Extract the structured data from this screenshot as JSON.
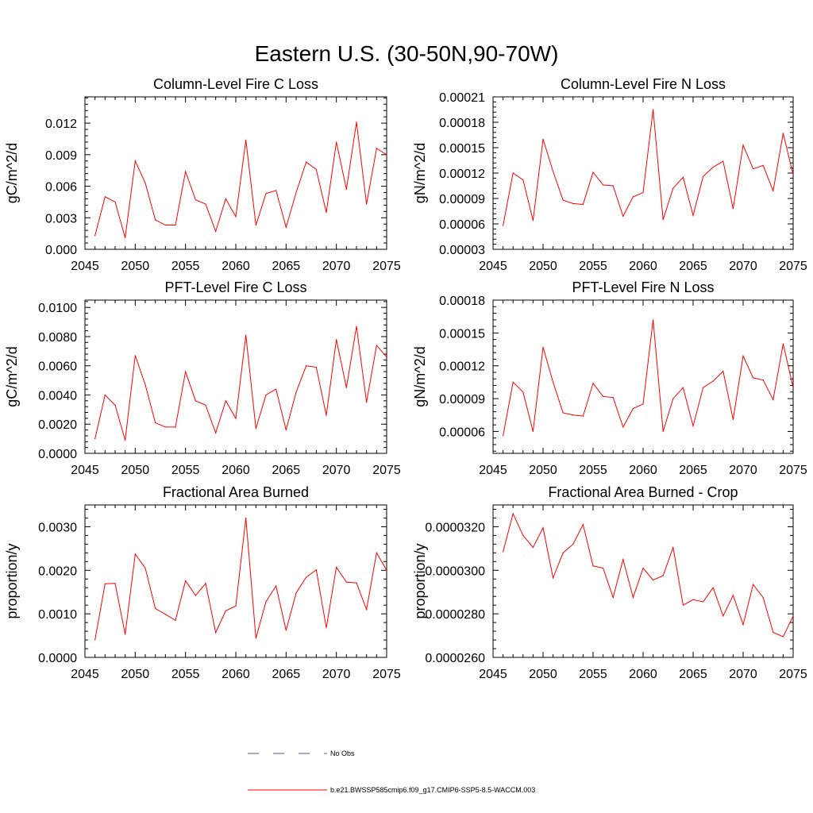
{
  "figure": {
    "title": "Eastern U.S. (30-50N,90-70W)"
  },
  "legend": {
    "entries": [
      {
        "label": "No Obs",
        "color": "#5555aa",
        "dashed": true
      },
      {
        "label": "b.e21.BWSSP585cmip6.f09_g17.CMIP6-SSP5-8.5-WACCM.003",
        "color": "#ff0000",
        "dashed": false
      }
    ]
  },
  "chart_data": [
    {
      "type": "line",
      "title": "Column-Level Fire C Loss",
      "ylabel": "gC/m^2/d",
      "xlabel": "",
      "xlim": [
        2045,
        2075
      ],
      "ylim": [
        0,
        0.0145
      ],
      "xticks": [
        2045,
        2050,
        2055,
        2060,
        2065,
        2070,
        2075
      ],
      "xtick_labels": [
        "2045",
        "2050",
        "2055",
        "2060",
        "2065",
        "2070",
        "2075"
      ],
      "yticks": [
        0,
        0.003,
        0.006,
        0.009,
        0.012
      ],
      "ytick_labels": [
        "0.000",
        "0.003",
        "0.006",
        "0.009",
        "0.012"
      ],
      "x": [
        2046,
        2047,
        2048,
        2049,
        2050,
        2051,
        2052,
        2053,
        2054,
        2055,
        2056,
        2057,
        2058,
        2059,
        2060,
        2061,
        2062,
        2063,
        2064,
        2065,
        2066,
        2067,
        2068,
        2069,
        2070,
        2071,
        2072,
        2073,
        2074,
        2075
      ],
      "series": [
        {
          "name": "b.e21.BWSSP585cmip6.f09_g17.CMIP6-SSP5-8.5-WACCM.003",
          "color": "#ff0000",
          "values": [
            0.0013,
            0.005,
            0.0045,
            0.0011,
            0.0084,
            0.0063,
            0.0028,
            0.0023,
            0.0023,
            0.0074,
            0.0047,
            0.0043,
            0.0017,
            0.0048,
            0.0031,
            0.0104,
            0.0023,
            0.0053,
            0.0056,
            0.0021,
            0.0054,
            0.0083,
            0.0076,
            0.0035,
            0.0102,
            0.0057,
            0.0121,
            0.0043,
            0.0096,
            0.009
          ]
        }
      ]
    },
    {
      "type": "line",
      "title": "Column-Level Fire N Loss",
      "ylabel": "gN/m^2/d",
      "xlabel": "",
      "xlim": [
        2045,
        2075
      ],
      "ylim": [
        3e-05,
        0.00021
      ],
      "xticks": [
        2045,
        2050,
        2055,
        2060,
        2065,
        2070,
        2075
      ],
      "xtick_labels": [
        "2045",
        "2050",
        "2055",
        "2060",
        "2065",
        "2070",
        "2075"
      ],
      "yticks": [
        3e-05,
        6e-05,
        9e-05,
        0.00012,
        0.00015,
        0.00018,
        0.00021
      ],
      "ytick_labels": [
        "0.00003",
        "0.00006",
        "0.00009",
        "0.00012",
        "0.00015",
        "0.00018",
        "0.00021"
      ],
      "x": [
        2046,
        2047,
        2048,
        2049,
        2050,
        2051,
        2052,
        2053,
        2054,
        2055,
        2056,
        2057,
        2058,
        2059,
        2060,
        2061,
        2062,
        2063,
        2064,
        2065,
        2066,
        2067,
        2068,
        2069,
        2070,
        2071,
        2072,
        2073,
        2074,
        2075
      ],
      "series": [
        {
          "name": "b.e21.BWSSP585cmip6.f09_g17.CMIP6-SSP5-8.5-WACCM.003",
          "color": "#ff0000",
          "values": [
            5.8e-05,
            0.00012,
            0.000112,
            6.4e-05,
            0.00016,
            0.000122,
            8.8e-05,
            8.4e-05,
            8.3e-05,
            0.000121,
            0.000106,
            0.000105,
            6.9e-05,
            9.2e-05,
            9.7e-05,
            0.000195,
            6.5e-05,
            0.000102,
            0.000115,
            7e-05,
            0.000116,
            0.000127,
            0.000134,
            7.8e-05,
            0.000153,
            0.000125,
            0.000129,
            9.9e-05,
            0.000167,
            0.000118
          ]
        }
      ]
    },
    {
      "type": "line",
      "title": "PFT-Level Fire C Loss",
      "ylabel": "gC/m^2/d",
      "xlabel": "",
      "xlim": [
        2045,
        2075
      ],
      "ylim": [
        0,
        0.0105
      ],
      "xticks": [
        2045,
        2050,
        2055,
        2060,
        2065,
        2070,
        2075
      ],
      "xtick_labels": [
        "2045",
        "2050",
        "2055",
        "2060",
        "2065",
        "2070",
        "2075"
      ],
      "yticks": [
        0,
        0.002,
        0.004,
        0.006,
        0.008,
        0.01
      ],
      "ytick_labels": [
        "0.0000",
        "0.0020",
        "0.0040",
        "0.0060",
        "0.0080",
        "0.0100"
      ],
      "x": [
        2046,
        2047,
        2048,
        2049,
        2050,
        2051,
        2052,
        2053,
        2054,
        2055,
        2056,
        2057,
        2058,
        2059,
        2060,
        2061,
        2062,
        2063,
        2064,
        2065,
        2066,
        2067,
        2068,
        2069,
        2070,
        2071,
        2072,
        2073,
        2074,
        2075
      ],
      "series": [
        {
          "name": "b.e21.BWSSP585cmip6.f09_g17.CMIP6-SSP5-8.5-WACCM.003",
          "color": "#ff0000",
          "values": [
            0.001,
            0.004,
            0.0033,
            0.0009,
            0.0067,
            0.0047,
            0.0021,
            0.0018,
            0.0018,
            0.0056,
            0.0036,
            0.0033,
            0.0014,
            0.0036,
            0.0024,
            0.0081,
            0.0017,
            0.004,
            0.0044,
            0.0016,
            0.0042,
            0.006,
            0.0059,
            0.0026,
            0.0078,
            0.0045,
            0.0087,
            0.0035,
            0.0074,
            0.0066
          ]
        }
      ]
    },
    {
      "type": "line",
      "title": "PFT-Level Fire N Loss",
      "ylabel": "gN/m^2/d",
      "xlabel": "",
      "xlim": [
        2045,
        2075
      ],
      "ylim": [
        4e-05,
        0.00018
      ],
      "xticks": [
        2045,
        2050,
        2055,
        2060,
        2065,
        2070,
        2075
      ],
      "xtick_labels": [
        "2045",
        "2050",
        "2055",
        "2060",
        "2065",
        "2070",
        "2075"
      ],
      "yticks": [
        6e-05,
        9e-05,
        0.00012,
        0.00015,
        0.00018
      ],
      "ytick_labels": [
        "0.00006",
        "0.00009",
        "0.00012",
        "0.00015",
        "0.00018"
      ],
      "x": [
        2046,
        2047,
        2048,
        2049,
        2050,
        2051,
        2052,
        2053,
        2054,
        2055,
        2056,
        2057,
        2058,
        2059,
        2060,
        2061,
        2062,
        2063,
        2064,
        2065,
        2066,
        2067,
        2068,
        2069,
        2070,
        2071,
        2072,
        2073,
        2074,
        2075
      ],
      "series": [
        {
          "name": "b.e21.BWSSP585cmip6.f09_g17.CMIP6-SSP5-8.5-WACCM.003",
          "color": "#ff0000",
          "values": [
            5.6e-05,
            0.000105,
            9.6e-05,
            6e-05,
            0.000137,
            0.000105,
            7.7e-05,
            7.5e-05,
            7.4e-05,
            0.000104,
            9.2e-05,
            9.1e-05,
            6.4e-05,
            8.1e-05,
            8.5e-05,
            0.000162,
            6e-05,
            9e-05,
            0.0001,
            6.5e-05,
            0.0001,
            0.000106,
            0.000115,
            7.1e-05,
            0.000129,
            0.000109,
            0.000107,
            8.9e-05,
            0.00014,
            0.0001
          ]
        }
      ]
    },
    {
      "type": "line",
      "title": "Fractional Area Burned",
      "ylabel": "proportion/y",
      "xlabel": "",
      "xlim": [
        2045,
        2075
      ],
      "ylim": [
        0,
        0.0035
      ],
      "xticks": [
        2045,
        2050,
        2055,
        2060,
        2065,
        2070,
        2075
      ],
      "xtick_labels": [
        "2045",
        "2050",
        "2055",
        "2060",
        "2065",
        "2070",
        "2075"
      ],
      "yticks": [
        0,
        0.001,
        0.002,
        0.003
      ],
      "ytick_labels": [
        "0.0000",
        "0.0010",
        "0.0020",
        "0.0030"
      ],
      "x": [
        2046,
        2047,
        2048,
        2049,
        2050,
        2051,
        2052,
        2053,
        2054,
        2055,
        2056,
        2057,
        2058,
        2059,
        2060,
        2061,
        2062,
        2063,
        2064,
        2065,
        2066,
        2067,
        2068,
        2069,
        2070,
        2071,
        2072,
        2073,
        2074,
        2075
      ],
      "series": [
        {
          "name": "b.e21.BWSSP585cmip6.f09_g17.CMIP6-SSP5-8.5-WACCM.003",
          "color": "#ff0000",
          "values": [
            0.0004,
            0.00169,
            0.0017,
            0.00053,
            0.00237,
            0.00205,
            0.00112,
            0.00099,
            0.00085,
            0.00176,
            0.00142,
            0.0017,
            0.00057,
            0.00107,
            0.00118,
            0.0032,
            0.00044,
            0.00128,
            0.00164,
            0.00062,
            0.00148,
            0.00184,
            0.00201,
            0.00068,
            0.00207,
            0.00173,
            0.00171,
            0.0011,
            0.0024,
            0.002
          ]
        }
      ]
    },
    {
      "type": "line",
      "title": "Fractional Area Burned - Crop",
      "ylabel": "proportion/y",
      "xlabel": "",
      "xlim": [
        2045,
        2075
      ],
      "ylim": [
        2.6e-05,
        3.3e-05
      ],
      "xticks": [
        2045,
        2050,
        2055,
        2060,
        2065,
        2070,
        2075
      ],
      "xtick_labels": [
        "2045",
        "2050",
        "2055",
        "2060",
        "2065",
        "2070",
        "2075"
      ],
      "yticks": [
        2.6e-05,
        2.8e-05,
        3e-05,
        3.2e-05
      ],
      "ytick_labels": [
        "0.0000260",
        "0.0000280",
        "0.0000300",
        "0.0000320"
      ],
      "x": [
        2046,
        2047,
        2048,
        2049,
        2050,
        2051,
        2052,
        2053,
        2054,
        2055,
        2056,
        2057,
        2058,
        2059,
        2060,
        2061,
        2062,
        2063,
        2064,
        2065,
        2066,
        2067,
        2068,
        2069,
        2070,
        2071,
        2072,
        2073,
        2074,
        2075
      ],
      "series": [
        {
          "name": "b.e21.BWSSP585cmip6.f09_g17.CMIP6-SSP5-8.5-WACCM.003",
          "color": "#ff0000",
          "values": [
            3.085e-05,
            3.26e-05,
            3.16e-05,
            3.105e-05,
            3.195e-05,
            2.965e-05,
            3.08e-05,
            3.12e-05,
            3.21e-05,
            3.02e-05,
            3.01e-05,
            2.875e-05,
            3.05e-05,
            2.875e-05,
            3.01e-05,
            2.955e-05,
            2.975e-05,
            3.105e-05,
            2.84e-05,
            2.865e-05,
            2.855e-05,
            2.92e-05,
            2.79e-05,
            2.885e-05,
            2.75e-05,
            2.935e-05,
            2.875e-05,
            2.715e-05,
            2.695e-05,
            2.79e-05
          ]
        }
      ]
    }
  ]
}
